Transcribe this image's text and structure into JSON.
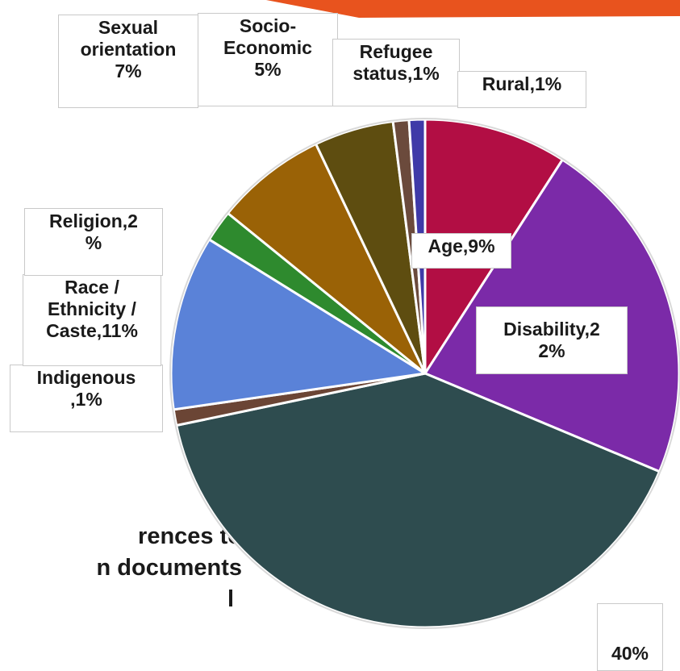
{
  "chart_data": {
    "type": "pie",
    "slices": [
      {
        "label": "Age,9%",
        "value": 9,
        "color": "#B20E44"
      },
      {
        "label": "Disability,2\n2%",
        "value": 22,
        "color": "#7B2AA8"
      },
      {
        "label": "40%",
        "value": 40,
        "color": "#2E4C4F"
      },
      {
        "label": "Indigenous\n,1%",
        "value": 1,
        "color": "#6B4535"
      },
      {
        "label": "Race /\nEthnicity /\nCaste,11%",
        "value": 11,
        "color": "#5A82D8"
      },
      {
        "label": "Religion,2\n%",
        "value": 2,
        "color": "#2E8A2E"
      },
      {
        "label": "Sexual\norientation\n7%",
        "value": 7,
        "color": "#9A6206"
      },
      {
        "label": "Socio-\nEconomic\n5%",
        "value": 5,
        "color": "#5E4D10"
      },
      {
        "label": "Refugee\nstatus,1%",
        "value": 1,
        "color": "#6B4A3C"
      },
      {
        "label": "Rural,1%",
        "value": 1,
        "color": "#3F3AA8"
      }
    ]
  },
  "background_text": {
    "line1": "rences to",
    "line2": "n documents",
    "line3": "l"
  },
  "colors": {
    "accent_bar": "#E8531E",
    "slice_border": "#ffffff"
  }
}
